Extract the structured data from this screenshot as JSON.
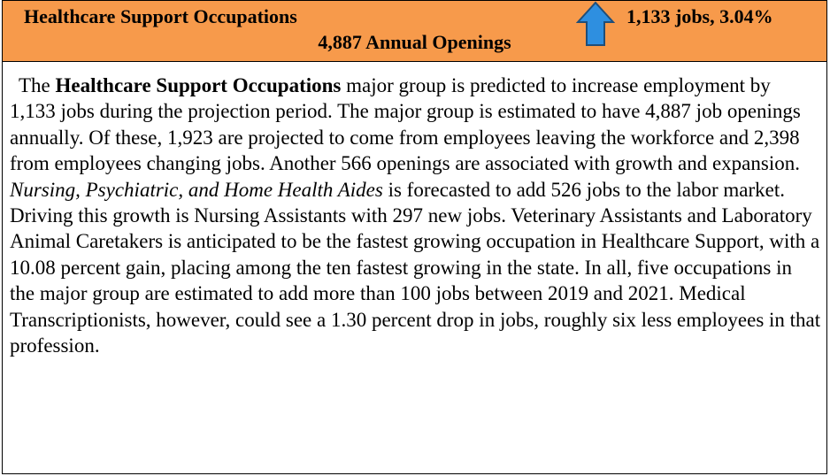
{
  "header": {
    "title": "Healthcare Support Occupations",
    "change": "1,133 jobs, 3.04%",
    "openings": "4,887 Annual Openings"
  },
  "body": {
    "segments": [
      "The ",
      "Healthcare Support Occupations",
      " major group is predicted to increase employment by 1,133 jobs during the projection period.  The major group is estimated to have 4,887 job openings annually.  Of these, 1,923 are projected to come from employees leaving the workforce and 2,398 from employees changing jobs.  Another 566 openings are associated with growth and expansion.  ",
      "Nursing, Psychiatric, and Home Health Aides",
      " is forecasted to add 526 jobs to the labor market.  Driving this growth is Nursing Assistants with 297 new jobs.  Veterinary Assistants and Laboratory Animal Caretakers is anticipated to be the fastest growing occupation in Healthcare Support, with a 10.08 percent gain, placing among the ten fastest growing in the state.  In all, five occupations in the major group are estimated to add more than 100 jobs between 2019 and 2021.  Medical Transcriptionists, however, could see a 1.30 percent drop in jobs, roughly six less employees in that profession."
    ]
  }
}
